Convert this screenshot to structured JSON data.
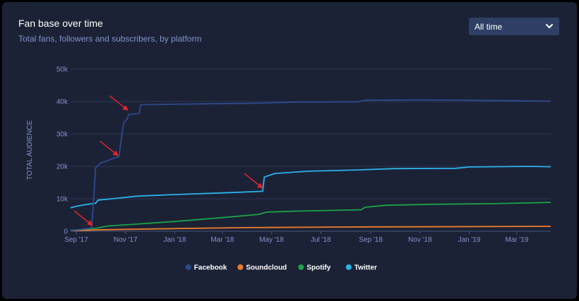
{
  "header": {
    "title": "Fan base over time",
    "subtitle": "Total fans, followers and subscribers, by platform"
  },
  "dropdown": {
    "selected": "All time",
    "icon": "chevron-down-icon"
  },
  "chart_data": {
    "type": "line",
    "ylabel": "TOTAL AUDIENCE",
    "ylim": [
      0,
      50000
    ],
    "yticks": [
      0,
      10000,
      20000,
      30000,
      40000,
      50000
    ],
    "ytick_labels": [
      "0",
      "10k",
      "20k",
      "30k",
      "40k",
      "50k"
    ],
    "xticks": [
      "2017-09-01",
      "2017-11-01",
      "2018-01-01",
      "2018-03-01",
      "2018-05-01",
      "2018-07-01",
      "2018-09-01",
      "2018-11-01",
      "2019-01-01",
      "2019-03-01"
    ],
    "xtick_labels": [
      "Sep '17",
      "Nov '17",
      "Jan '18",
      "Mar '18",
      "May '18",
      "Jul '18",
      "Sep '18",
      "Nov '18",
      "Jan '19",
      "Mar '19"
    ],
    "xlim": [
      "2017-08-25",
      "2019-04-12"
    ],
    "grid": true,
    "legend_position": "bottom-center",
    "series": [
      {
        "name": "Facebook",
        "color": "#2d4a8c",
        "points": [
          [
            "2017-08-25",
            200
          ],
          [
            "2017-09-10",
            700
          ],
          [
            "2017-09-20",
            1000
          ],
          [
            "2017-09-22",
            8000
          ],
          [
            "2017-09-25",
            19500
          ],
          [
            "2017-10-01",
            21000
          ],
          [
            "2017-10-08",
            21600
          ],
          [
            "2017-10-15",
            22300
          ],
          [
            "2017-10-24",
            23000
          ],
          [
            "2017-10-27",
            29000
          ],
          [
            "2017-10-30",
            33500
          ],
          [
            "2017-11-03",
            34500
          ],
          [
            "2017-11-05",
            36000
          ],
          [
            "2017-11-18",
            36300
          ],
          [
            "2017-11-20",
            39000
          ],
          [
            "2017-12-15",
            39100
          ],
          [
            "2018-02-15",
            39300
          ],
          [
            "2018-04-15",
            39500
          ],
          [
            "2018-06-01",
            39800
          ],
          [
            "2018-08-15",
            39900
          ],
          [
            "2018-08-25",
            40400
          ],
          [
            "2018-11-01",
            40500
          ],
          [
            "2019-01-01",
            40400
          ],
          [
            "2019-04-12",
            40100
          ]
        ]
      },
      {
        "name": "Soundcloud",
        "color": "#ee7b2a",
        "points": [
          [
            "2017-08-25",
            200
          ],
          [
            "2017-10-15",
            500
          ],
          [
            "2018-01-01",
            800
          ],
          [
            "2018-04-01",
            1100
          ],
          [
            "2018-08-01",
            1300
          ],
          [
            "2019-04-12",
            1500
          ]
        ]
      },
      {
        "name": "Spotify",
        "color": "#1aa34a",
        "points": [
          [
            "2017-08-25",
            300
          ],
          [
            "2017-09-25",
            900
          ],
          [
            "2017-10-10",
            1600
          ],
          [
            "2017-11-15",
            2200
          ],
          [
            "2018-01-01",
            3000
          ],
          [
            "2018-03-01",
            4200
          ],
          [
            "2018-04-15",
            5200
          ],
          [
            "2018-04-25",
            5900
          ],
          [
            "2018-06-01",
            6200
          ],
          [
            "2018-08-20",
            6600
          ],
          [
            "2018-08-25",
            7400
          ],
          [
            "2018-09-20",
            8000
          ],
          [
            "2018-11-15",
            8300
          ],
          [
            "2019-02-01",
            8500
          ],
          [
            "2019-04-12",
            8900
          ]
        ]
      },
      {
        "name": "Twitter",
        "color": "#29b3ea",
        "points": [
          [
            "2017-08-25",
            7200
          ],
          [
            "2017-09-01",
            7700
          ],
          [
            "2017-09-15",
            8300
          ],
          [
            "2017-09-25",
            8600
          ],
          [
            "2017-09-28",
            9600
          ],
          [
            "2017-10-15",
            10000
          ],
          [
            "2017-11-15",
            10800
          ],
          [
            "2018-01-01",
            11300
          ],
          [
            "2018-03-01",
            11800
          ],
          [
            "2018-04-20",
            12300
          ],
          [
            "2018-04-22",
            16700
          ],
          [
            "2018-05-05",
            17800
          ],
          [
            "2018-06-15",
            18500
          ],
          [
            "2018-08-15",
            18900
          ],
          [
            "2018-10-01",
            19300
          ],
          [
            "2018-12-15",
            19400
          ],
          [
            "2019-01-01",
            19800
          ],
          [
            "2019-03-15",
            20000
          ],
          [
            "2019-04-12",
            19900
          ]
        ]
      }
    ],
    "annotations": [
      {
        "type": "arrow",
        "at": [
          "2017-09-22",
          1500
        ],
        "color": "#e1242b"
      },
      {
        "type": "arrow",
        "at": [
          "2017-10-24",
          23000
        ],
        "color": "#e1242b"
      },
      {
        "type": "arrow",
        "at": [
          "2017-11-05",
          37000
        ],
        "color": "#e1242b"
      },
      {
        "type": "arrow",
        "at": [
          "2018-04-21",
          13000
        ],
        "color": "#e1242b"
      }
    ]
  }
}
